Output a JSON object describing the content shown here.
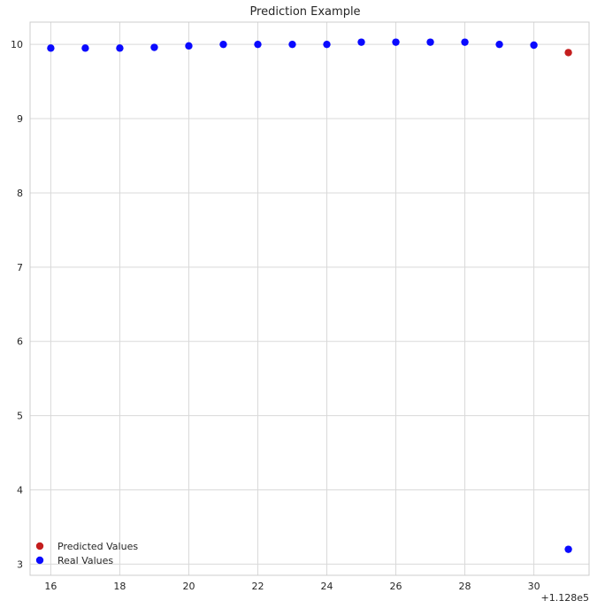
{
  "chart_data": {
    "type": "scatter",
    "title": "Prediction Example",
    "xlabel": "",
    "ylabel": "",
    "x_offset_label": "+1.128e5",
    "x_offset": 112800,
    "xlim": [
      112815.4,
      112831.6
    ],
    "ylim": [
      2.85,
      10.3
    ],
    "x_ticks": [
      16,
      18,
      20,
      22,
      24,
      26,
      28,
      30
    ],
    "x_tick_labels": [
      "16",
      "18",
      "20",
      "22",
      "24",
      "26",
      "28",
      "30"
    ],
    "y_ticks": [
      3,
      4,
      5,
      6,
      7,
      8,
      9,
      10
    ],
    "y_tick_labels": [
      "3",
      "4",
      "5",
      "6",
      "7",
      "8",
      "9",
      "10"
    ],
    "grid": true,
    "legend_position": "lower-left",
    "series": [
      {
        "name": "Predicted Values",
        "color": "#c41e1e",
        "x": [
          112831
        ],
        "y": [
          9.89
        ]
      },
      {
        "name": "Real Values",
        "color": "#0a0aff",
        "x": [
          112816,
          112817,
          112818,
          112819,
          112820,
          112821,
          112822,
          112823,
          112824,
          112825,
          112826,
          112827,
          112828,
          112829,
          112830,
          112831
        ],
        "y": [
          9.95,
          9.95,
          9.95,
          9.96,
          9.98,
          10.0,
          10.0,
          10.0,
          10.0,
          10.03,
          10.03,
          10.03,
          10.03,
          10.0,
          9.99,
          3.2
        ]
      }
    ]
  },
  "colors": {
    "background": "#ffffff",
    "grid": "#d9d9d9",
    "frame": "#cccccc",
    "text": "#262626"
  }
}
